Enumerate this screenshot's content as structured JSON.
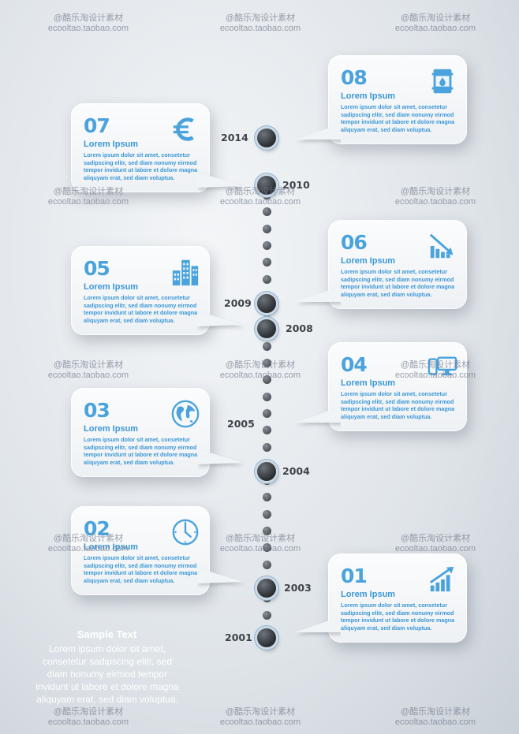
{
  "heading": "Lorem Ipsum",
  "body": "Lorem ipsum dolor sit amet, consetetur sadipscing elitr, sed diam nonumy eirmod tempor invidunt ut labore et dolore magna aliquyam erat, sed diam voluptua.",
  "steps": [
    {
      "num": "07",
      "icon": "euro-icon"
    },
    {
      "num": "08",
      "icon": "oil-barrel-icon"
    },
    {
      "num": "05",
      "icon": "buildings-icon"
    },
    {
      "num": "06",
      "icon": "decline-chart-icon"
    },
    {
      "num": "04",
      "icon": "devices-icon"
    },
    {
      "num": "03",
      "icon": "globe-icon"
    },
    {
      "num": "02",
      "icon": "clock-icon"
    },
    {
      "num": "01",
      "icon": "growth-chart-icon"
    }
  ],
  "years": [
    "2014",
    "2010",
    "2009",
    "2008",
    "2005",
    "2004",
    "2003",
    "2001"
  ],
  "sample": {
    "title": "Sample Text",
    "body": "Lorem ipsum dolor sit amet, consetetur sadipscing elitr, sed diam nonumy eirmod tempor invidunt ut labore et dolore magna aliquyam erat, sed diam voluptua."
  },
  "watermark": {
    "line1": "@酷乐淘设计素材",
    "line2": "ecooltao.taobao.com"
  },
  "colors": {
    "accent": "#4aa3dd",
    "node": "#2d3237",
    "ring": "#8fb6d6"
  }
}
